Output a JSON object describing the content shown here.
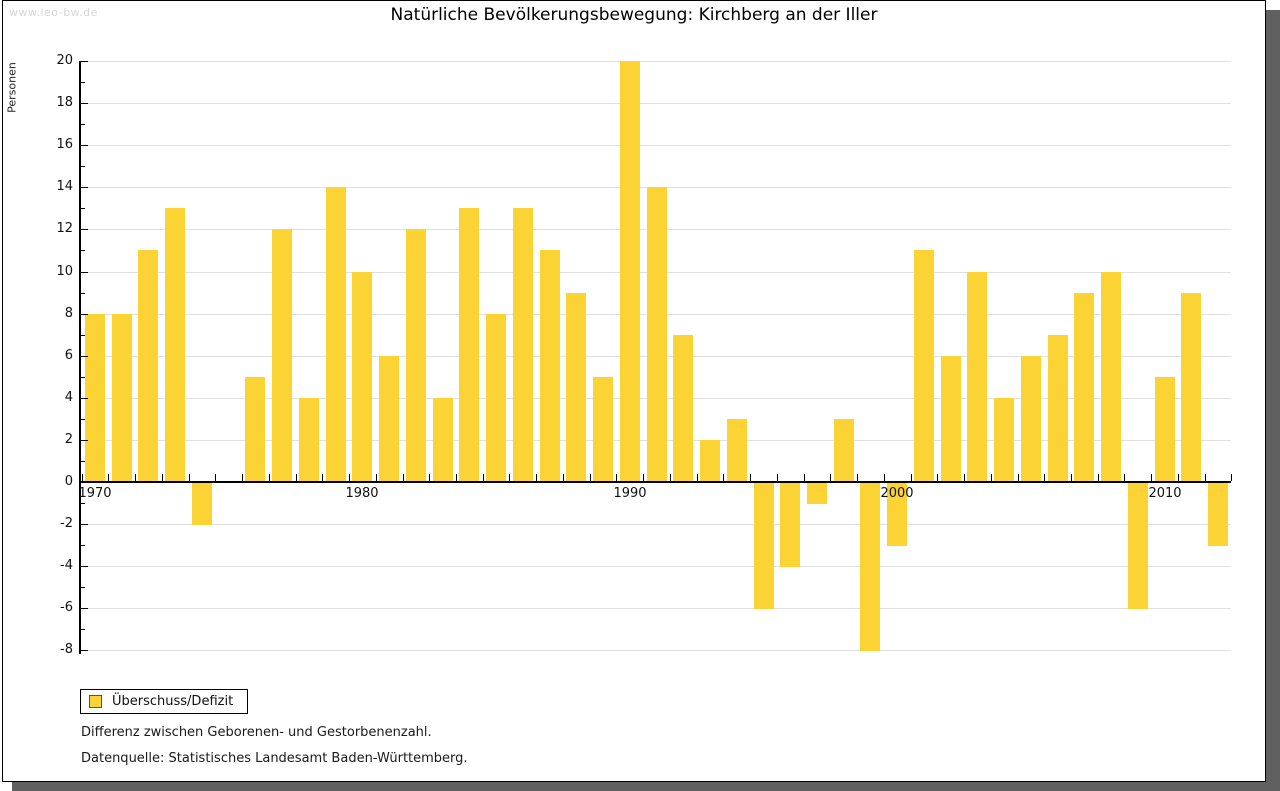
{
  "watermark": "www.leo-bw.de",
  "title": "Natürliche Bevölkerungsbewegung: Kirchberg an der Iller",
  "legend": {
    "label": "Überschuss/Defizit"
  },
  "captions": [
    "Differenz zwischen Geborenen- und Gestorbenenzahl.",
    "Datenquelle: Statistisches Landesamt Baden-Württemberg."
  ],
  "colors": {
    "bar": "#FBD335",
    "legend_swatch_border": "#5a5345",
    "gridline": "#e0e0e0",
    "axis": "#000000",
    "tick_label": "#111111",
    "watermark_text": "#d6d6d6",
    "page_shadow": "#606060"
  },
  "chart_data": {
    "type": "bar",
    "title": "Natürliche Bevölkerungsbewegung: Kirchberg an der Iller",
    "xlabel": "",
    "ylabel": "Personen",
    "series_name": "Überschuss/Defizit",
    "x": [
      1970,
      1971,
      1972,
      1973,
      1974,
      1975,
      1976,
      1977,
      1978,
      1979,
      1980,
      1981,
      1982,
      1983,
      1984,
      1985,
      1986,
      1987,
      1988,
      1989,
      1990,
      1991,
      1992,
      1993,
      1994,
      1995,
      1996,
      1997,
      1998,
      1999,
      2000,
      2001,
      2002,
      2003,
      2004,
      2005,
      2006,
      2007,
      2008,
      2009,
      2010,
      2011,
      2012
    ],
    "values": [
      8,
      8,
      11,
      13,
      -2,
      0,
      5,
      12,
      4,
      14,
      10,
      6,
      12,
      4,
      13,
      8,
      13,
      11,
      9,
      5,
      20,
      14,
      7,
      2,
      3,
      -6,
      -4,
      -1,
      3,
      -8,
      -3,
      11,
      6,
      10,
      4,
      6,
      7,
      9,
      10,
      -6,
      5,
      9,
      -3
    ],
    "ylim": [
      -8,
      20
    ],
    "y_ticks": [
      20,
      18,
      16,
      14,
      12,
      10,
      8,
      6,
      4,
      2,
      0,
      -2,
      -4,
      -6,
      -8
    ],
    "y_minor_tick_step": 1,
    "x_ticks": [
      1970,
      1980,
      1990,
      2000,
      2010
    ],
    "grid": true,
    "legend_position": "bottom-left"
  }
}
